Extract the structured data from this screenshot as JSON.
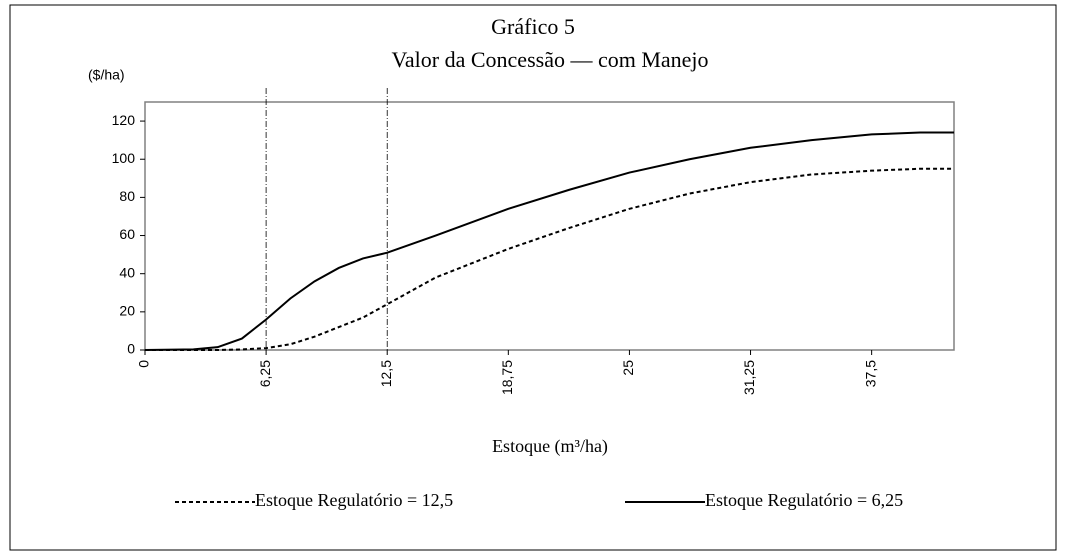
{
  "chart_data": {
    "type": "line",
    "title": "Gráfico 5",
    "subtitle": "Valor da Concessão — com Manejo",
    "y_label": "($/ha)",
    "x_label": "Estoque (m³/ha)",
    "x": [
      0,
      2.5,
      3.75,
      5,
      6.25,
      7.5,
      8.75,
      10,
      11.25,
      12.5,
      15,
      18.75,
      21.9,
      25,
      28.1,
      31.25,
      34.4,
      37.5,
      40,
      41.75
    ],
    "series": [
      {
        "name": "Estoque Regulatório = 12,5",
        "color": "#000000",
        "dash": true,
        "values": [
          0,
          0,
          0,
          0.3,
          1,
          3,
          7,
          12,
          17,
          24,
          38,
          53,
          64,
          74,
          82,
          88,
          92,
          94,
          95,
          95
        ]
      },
      {
        "name": "Estoque Regulatório = 6,25",
        "color": "#000000",
        "dash": false,
        "values": [
          0,
          0.3,
          1.5,
          6,
          16,
          27,
          36,
          43,
          48,
          51,
          60,
          74,
          84,
          93,
          100,
          106,
          110,
          113,
          114,
          114
        ]
      }
    ],
    "vlines": [
      6.25,
      12.5
    ],
    "xlim": [
      0,
      41.75
    ],
    "xticks": [
      0,
      {
        "value": 6.25,
        "label": "6,25"
      },
      {
        "value": 12.5,
        "label": "12,5"
      },
      {
        "value": 18.75,
        "label": "18,75"
      },
      25,
      {
        "value": 31.25,
        "label": "31,25"
      },
      {
        "value": 37.5,
        "label": "37,5"
      }
    ],
    "ylim": [
      0,
      130
    ],
    "yticks": [
      0,
      20,
      40,
      60,
      80,
      100,
      120
    ],
    "grid": false,
    "legend": "bottom"
  }
}
